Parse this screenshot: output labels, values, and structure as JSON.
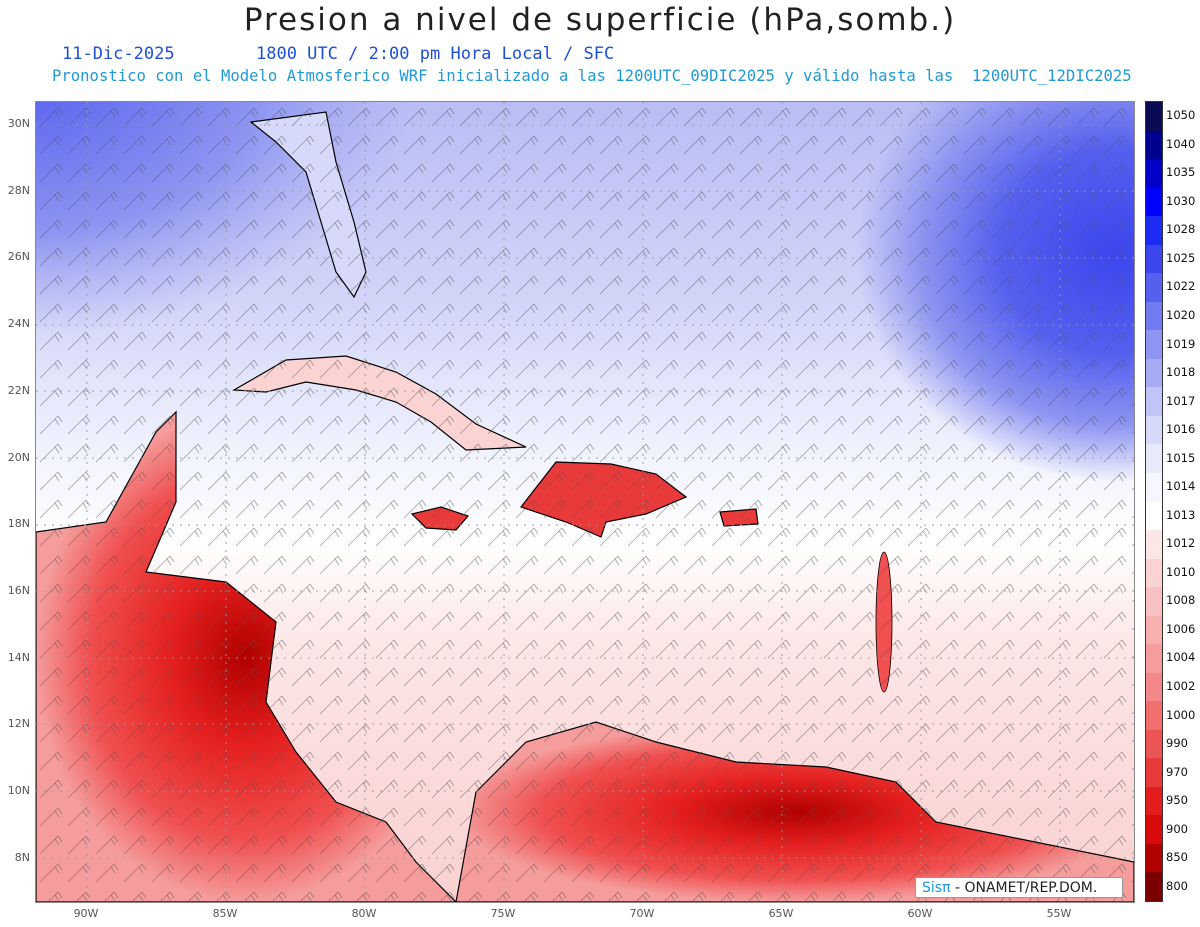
{
  "header": {
    "title": "Presion a nivel de superficie (hPa,somb.)",
    "date": "11-Dic-2025",
    "time_line": "1800 UTC / 2:00 pm Hora Local / SFC",
    "model_line": "Pronostico con el Modelo Atmosferico WRF inicializado a las 1200UTC_09DIC2025 y válido hasta las  1200UTC_12DIC2025"
  },
  "axes": {
    "lat_labels": [
      "30N",
      "28N",
      "26N",
      "24N",
      "22N",
      "20N",
      "18N",
      "16N",
      "14N",
      "12N",
      "10N",
      "8N"
    ],
    "lon_labels": [
      "90W",
      "85W",
      "80W",
      "75W",
      "70W",
      "65W",
      "60W",
      "55W"
    ]
  },
  "colorbar": {
    "levels": [
      "1050",
      "1040",
      "1035",
      "1030",
      "1028",
      "1025",
      "1022",
      "1020",
      "1019",
      "1018",
      "1017",
      "1016",
      "1015",
      "1014",
      "1013",
      "1012",
      "1010",
      "1008",
      "1006",
      "1004",
      "1002",
      "1000",
      "990",
      "970",
      "950",
      "900",
      "850",
      "800"
    ],
    "colors": [
      "#0a0a55",
      "#00008f",
      "#0000c8",
      "#0000ff",
      "#1c2cf5",
      "#3b46ee",
      "#5660ee",
      "#727aef",
      "#8d94f1",
      "#a6abf3",
      "#c0c4f6",
      "#d6d9f9",
      "#e8eafc",
      "#f6f7fe",
      "#ffffff",
      "#fde6e6",
      "#fbd3d3",
      "#f9c2c2",
      "#f7b0b0",
      "#f59c9c",
      "#f38888",
      "#f07070",
      "#ec5555",
      "#e83a3a",
      "#e41e1e",
      "#d80a0a",
      "#b00000",
      "#7a0000"
    ]
  },
  "credit": {
    "brand": "Sisπ",
    "text": " - ONAMET/REP.DOM."
  }
}
